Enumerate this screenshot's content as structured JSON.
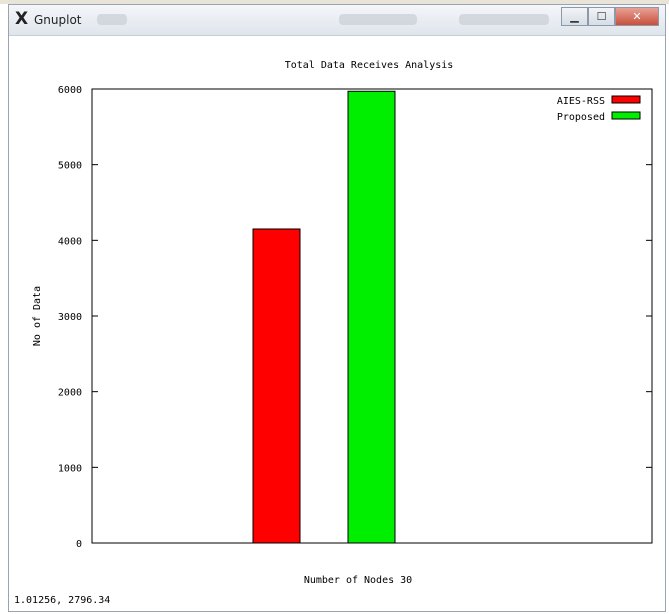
{
  "window": {
    "title": "Gnuplot",
    "app_icon": "x11-icon",
    "controls": {
      "minimize": "minimize-icon",
      "maximize": "maximize-icon",
      "close": "close-icon"
    }
  },
  "status": {
    "coords": "1.01256,  2796.34"
  },
  "chart_data": {
    "type": "bar",
    "title": "Total Data Receives Analysis",
    "xlabel": "Number of Nodes 30",
    "ylabel": "No of Data",
    "ylim": [
      0,
      6000
    ],
    "yticks": [
      0,
      1000,
      2000,
      3000,
      4000,
      5000,
      6000
    ],
    "grid": false,
    "legend_position": "top-right",
    "series": [
      {
        "name": "AIES-RSS",
        "value": 4150,
        "color": "#ff0000"
      },
      {
        "name": "Proposed",
        "value": 5970,
        "color": "#00ee00"
      }
    ]
  }
}
